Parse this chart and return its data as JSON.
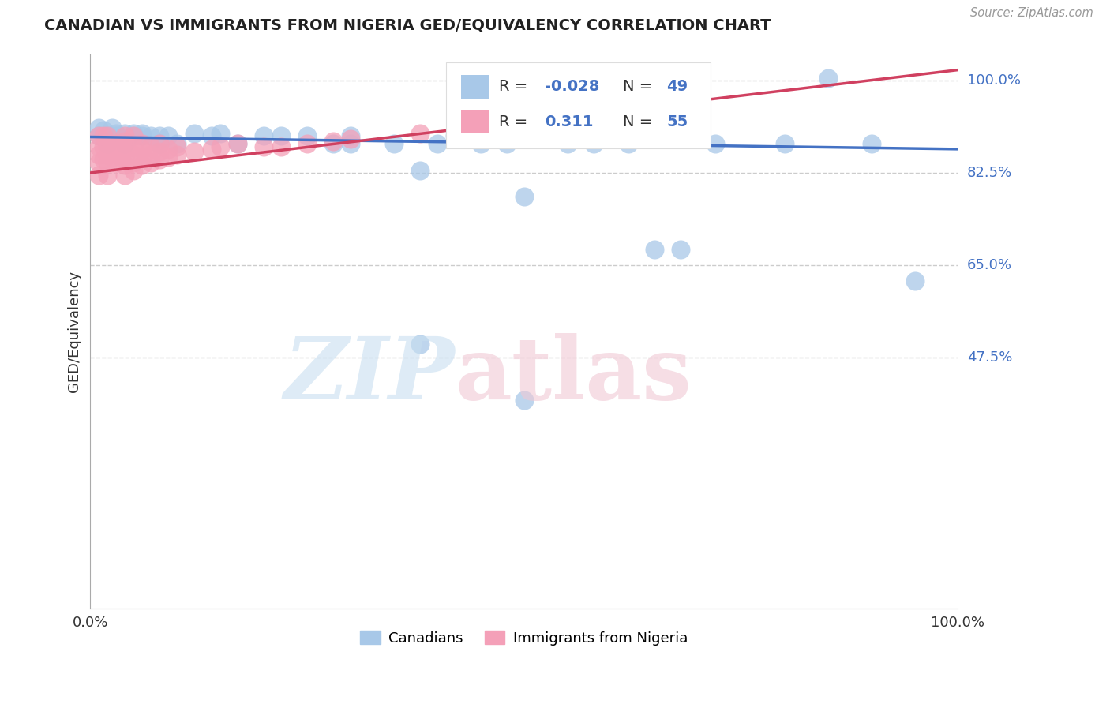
{
  "title": "CANADIAN VS IMMIGRANTS FROM NIGERIA GED/EQUIVALENCY CORRELATION CHART",
  "source": "Source: ZipAtlas.com",
  "ylabel": "GED/Equivalency",
  "xlim": [
    0.0,
    1.0
  ],
  "ylim": [
    0.0,
    1.05
  ],
  "ytick_positions": [
    0.475,
    0.65,
    0.825,
    1.0
  ],
  "ytick_labels": [
    "47.5%",
    "65.0%",
    "82.5%",
    "100.0%"
  ],
  "xtick_positions": [
    0.0,
    1.0
  ],
  "xtick_labels": [
    "0.0%",
    "100.0%"
  ],
  "canadian_color": "#a8c8e8",
  "nigeria_color": "#f4a0b8",
  "canadian_line_color": "#4472c4",
  "nigeria_line_color": "#d04060",
  "legend_r_canadian": "-0.028",
  "legend_n_canadian": "49",
  "legend_r_nigeria": "0.311",
  "legend_n_nigeria": "55",
  "canadians_x": [
    0.01,
    0.01,
    0.015,
    0.02,
    0.02,
    0.025,
    0.025,
    0.03,
    0.03,
    0.04,
    0.04,
    0.05,
    0.05,
    0.06,
    0.06,
    0.07,
    0.08,
    0.08,
    0.09,
    0.1,
    0.12,
    0.14,
    0.15,
    0.17,
    0.2,
    0.22,
    0.25,
    0.28,
    0.3,
    0.35,
    0.38,
    0.4,
    0.42,
    0.45,
    0.48,
    0.5,
    0.55,
    0.58,
    0.62,
    0.65,
    0.68,
    0.72,
    0.8,
    0.85,
    0.9,
    0.95,
    0.38,
    0.5,
    0.3
  ],
  "canadians_y": [
    0.895,
    0.91,
    0.905,
    0.895,
    0.88,
    0.895,
    0.91,
    0.9,
    0.895,
    0.88,
    0.9,
    0.9,
    0.895,
    0.895,
    0.9,
    0.895,
    0.895,
    0.88,
    0.895,
    0.88,
    0.9,
    0.895,
    0.9,
    0.88,
    0.895,
    0.895,
    0.895,
    0.88,
    0.895,
    0.88,
    0.83,
    0.88,
    0.895,
    0.88,
    0.88,
    0.78,
    0.88,
    0.88,
    0.88,
    0.68,
    0.68,
    0.88,
    0.88,
    1.005,
    0.88,
    0.62,
    0.5,
    0.395,
    0.88
  ],
  "nigeria_x": [
    0.01,
    0.01,
    0.01,
    0.01,
    0.01,
    0.015,
    0.015,
    0.015,
    0.02,
    0.02,
    0.02,
    0.02,
    0.02,
    0.025,
    0.025,
    0.03,
    0.03,
    0.03,
    0.035,
    0.035,
    0.04,
    0.04,
    0.04,
    0.04,
    0.04,
    0.04,
    0.05,
    0.05,
    0.05,
    0.05,
    0.05,
    0.06,
    0.06,
    0.06,
    0.06,
    0.07,
    0.07,
    0.07,
    0.08,
    0.08,
    0.08,
    0.09,
    0.09,
    0.1,
    0.1,
    0.12,
    0.14,
    0.15,
    0.17,
    0.2,
    0.22,
    0.25,
    0.28,
    0.3,
    0.38
  ],
  "nigeria_y": [
    0.82,
    0.845,
    0.86,
    0.875,
    0.895,
    0.85,
    0.875,
    0.895,
    0.82,
    0.845,
    0.86,
    0.875,
    0.895,
    0.855,
    0.875,
    0.845,
    0.865,
    0.88,
    0.855,
    0.875,
    0.82,
    0.84,
    0.855,
    0.87,
    0.885,
    0.895,
    0.83,
    0.845,
    0.86,
    0.875,
    0.895,
    0.84,
    0.855,
    0.87,
    0.88,
    0.845,
    0.86,
    0.875,
    0.85,
    0.865,
    0.88,
    0.855,
    0.87,
    0.86,
    0.875,
    0.865,
    0.87,
    0.875,
    0.88,
    0.875,
    0.875,
    0.88,
    0.885,
    0.89,
    0.9
  ]
}
